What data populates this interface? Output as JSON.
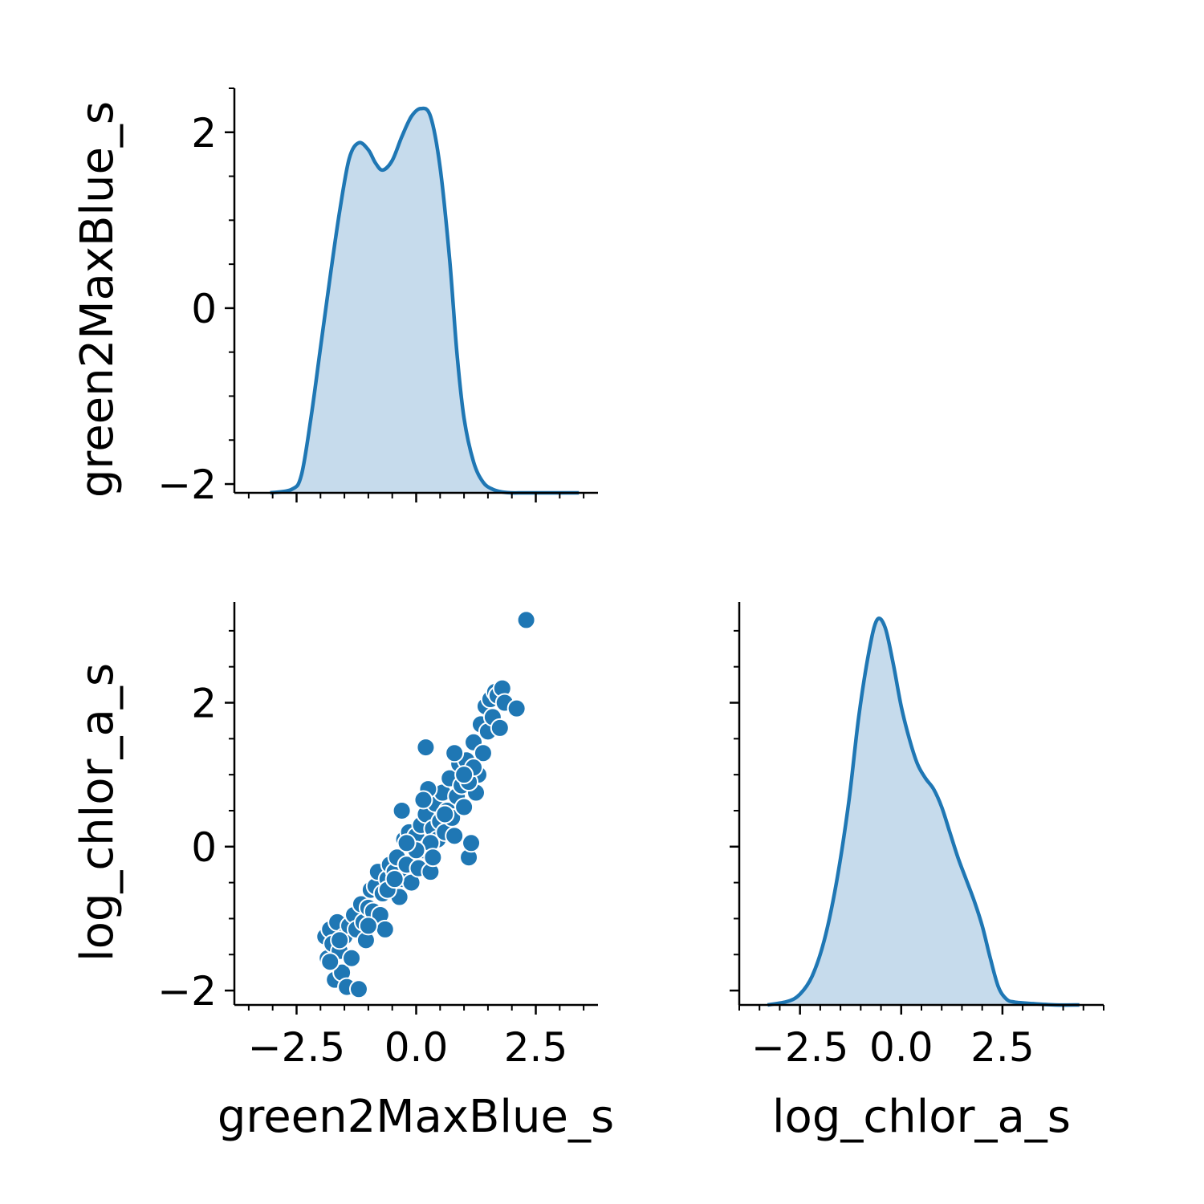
{
  "colors": {
    "series": "#1f77b4",
    "fill": "#c6dbec",
    "axis": "#000000",
    "point_edge": "#ffffff"
  },
  "chart_data": [
    {
      "panel": "diag-green2MaxBlue_s",
      "type": "area",
      "xlabel": "",
      "ylabel": "green2MaxBlue_s",
      "xlim": [
        -3.8,
        3.8
      ],
      "ylim": [
        -2.1,
        2.5
      ],
      "x_ticks": [
        -2.5,
        0.0,
        2.5
      ],
      "y_ticks": [
        {
          "value": -2,
          "label": "−2"
        },
        {
          "value": 0,
          "label": "0"
        },
        {
          "value": 2,
          "label": "2"
        }
      ],
      "x_ticks_labeled": false,
      "grid": false,
      "x": [
        -3.05,
        -2.6,
        -2.4,
        -2.2,
        -2.0,
        -1.8,
        -1.6,
        -1.4,
        -1.2,
        -1.0,
        -0.85,
        -0.7,
        -0.5,
        -0.3,
        -0.1,
        0.1,
        0.3,
        0.5,
        0.7,
        0.85,
        1.0,
        1.2,
        1.4,
        1.6,
        1.8,
        2.0,
        2.2,
        2.4,
        2.6,
        3.0,
        3.4
      ],
      "y": [
        -2.1,
        -2.06,
        -1.9,
        -1.25,
        -0.45,
        0.35,
        1.1,
        1.7,
        1.88,
        1.8,
        1.65,
        1.57,
        1.68,
        1.95,
        2.18,
        2.27,
        2.18,
        1.6,
        0.55,
        -0.5,
        -1.25,
        -1.75,
        -1.98,
        -2.06,
        -2.09,
        -2.1,
        -2.1,
        -2.1,
        -2.1,
        -2.1,
        -2.1
      ]
    },
    {
      "panel": "scatter-green2MaxBlue_s-vs-log_chlor_a_s",
      "type": "scatter",
      "xlabel": "green2MaxBlue_s",
      "ylabel": "log_chlor_a_s",
      "xlim": [
        -3.8,
        3.8
      ],
      "ylim": [
        -2.2,
        3.4
      ],
      "x_ticks": [
        {
          "value": -2.5,
          "label": "−2.5"
        },
        {
          "value": 0,
          "label": "0.0"
        },
        {
          "value": 2.5,
          "label": "2.5"
        }
      ],
      "y_ticks": [
        {
          "value": -2,
          "label": "−2"
        },
        {
          "value": 0,
          "label": "0"
        },
        {
          "value": 2,
          "label": "2"
        }
      ],
      "grid": false,
      "points": [
        [
          -1.9,
          -1.25
        ],
        [
          -1.85,
          -1.55
        ],
        [
          -1.8,
          -1.15
        ],
        [
          -1.75,
          -1.35
        ],
        [
          -1.7,
          -1.85
        ],
        [
          -1.65,
          -1.05
        ],
        [
          -1.6,
          -1.45
        ],
        [
          -1.55,
          -1.75
        ],
        [
          -1.5,
          -1.25
        ],
        [
          -1.45,
          -1.95
        ],
        [
          -1.4,
          -1.1
        ],
        [
          -1.35,
          -1.55
        ],
        [
          -1.3,
          -0.95
        ],
        [
          -1.25,
          -1.15
        ],
        [
          -1.2,
          -1.98
        ],
        [
          -1.15,
          -0.8
        ],
        [
          -1.1,
          -1.05
        ],
        [
          -1.05,
          -1.3
        ],
        [
          -1.0,
          -0.85
        ],
        [
          -0.95,
          -0.6
        ],
        [
          -0.9,
          -0.9
        ],
        [
          -0.85,
          -0.55
        ],
        [
          -0.8,
          -0.35
        ],
        [
          -0.75,
          -0.95
        ],
        [
          -0.7,
          -0.65
        ],
        [
          -0.65,
          -1.15
        ],
        [
          -0.6,
          -0.45
        ],
        [
          -0.55,
          -0.25
        ],
        [
          -0.5,
          -0.6
        ],
        [
          -0.45,
          -0.35
        ],
        [
          -0.4,
          -0.15
        ],
        [
          -0.35,
          -0.7
        ],
        [
          -0.3,
          -0.45
        ],
        [
          -0.25,
          0.1
        ],
        [
          -0.2,
          -0.25
        ],
        [
          -0.15,
          0.2
        ],
        [
          -0.1,
          -0.5
        ],
        [
          -0.05,
          0.0
        ],
        [
          0.0,
          0.15
        ],
        [
          0.05,
          -0.3
        ],
        [
          0.1,
          0.3
        ],
        [
          0.15,
          -0.05
        ],
        [
          0.2,
          0.45
        ],
        [
          0.25,
          0.0
        ],
        [
          0.3,
          -0.35
        ],
        [
          0.35,
          0.25
        ],
        [
          0.4,
          0.6
        ],
        [
          0.45,
          0.1
        ],
        [
          0.5,
          0.35
        ],
        [
          0.55,
          0.75
        ],
        [
          0.6,
          0.2
        ],
        [
          0.65,
          0.5
        ],
        [
          0.7,
          0.95
        ],
        [
          0.75,
          0.4
        ],
        [
          0.8,
          0.15
        ],
        [
          0.85,
          0.7
        ],
        [
          0.9,
          1.15
        ],
        [
          0.95,
          0.85
        ],
        [
          1.0,
          0.55
        ],
        [
          1.05,
          1.2
        ],
        [
          1.1,
          -0.15
        ],
        [
          1.15,
          0.05
        ],
        [
          1.2,
          1.45
        ],
        [
          1.25,
          0.75
        ],
        [
          1.3,
          1.0
        ],
        [
          1.35,
          1.7
        ],
        [
          1.4,
          1.3
        ],
        [
          1.45,
          1.95
        ],
        [
          1.5,
          1.6
        ],
        [
          1.55,
          2.05
        ],
        [
          1.6,
          1.8
        ],
        [
          1.65,
          2.15
        ],
        [
          1.7,
          2.1
        ],
        [
          1.75,
          1.65
        ],
        [
          1.8,
          2.2
        ],
        [
          1.85,
          2.0
        ],
        [
          2.1,
          1.92
        ],
        [
          2.3,
          3.15
        ],
        [
          0.2,
          1.38
        ],
        [
          -0.3,
          0.5
        ],
        [
          -1.8,
          -1.6
        ],
        [
          -1.6,
          -1.3
        ],
        [
          -1.0,
          -1.1
        ],
        [
          -0.6,
          -0.6
        ],
        [
          0.3,
          0.05
        ],
        [
          0.8,
          1.3
        ],
        [
          1.1,
          0.9
        ],
        [
          0.25,
          0.8
        ],
        [
          0.0,
          -0.05
        ],
        [
          -0.2,
          0.05
        ],
        [
          0.6,
          0.45
        ],
        [
          1.2,
          1.1
        ],
        [
          0.35,
          -0.15
        ],
        [
          -0.45,
          -0.45
        ],
        [
          1.0,
          1.0
        ],
        [
          0.15,
          0.65
        ]
      ]
    },
    {
      "panel": "diag-log_chlor_a_s",
      "type": "area",
      "xlabel": "log_chlor_a_s",
      "ylabel": "",
      "xlim": [
        -4.0,
        5.0
      ],
      "ylim": [
        -2.2,
        3.4
      ],
      "x_ticks": [
        {
          "value": -2.5,
          "label": "−2.5"
        },
        {
          "value": 0,
          "label": "0.0"
        },
        {
          "value": 2.5,
          "label": "2.5"
        }
      ],
      "y_ticks_labeled": false,
      "grid": false,
      "x": [
        -3.3,
        -2.8,
        -2.5,
        -2.2,
        -1.9,
        -1.6,
        -1.3,
        -1.05,
        -0.8,
        -0.6,
        -0.4,
        -0.2,
        0.0,
        0.2,
        0.4,
        0.6,
        0.8,
        1.0,
        1.2,
        1.4,
        1.6,
        1.8,
        2.0,
        2.2,
        2.4,
        2.6,
        2.8,
        3.2,
        3.8,
        4.4
      ],
      "y": [
        -2.2,
        -2.15,
        -2.05,
        -1.8,
        -1.3,
        -0.5,
        0.6,
        1.8,
        2.7,
        3.15,
        3.05,
        2.55,
        1.95,
        1.5,
        1.15,
        0.95,
        0.8,
        0.55,
        0.2,
        -0.15,
        -0.45,
        -0.75,
        -1.1,
        -1.55,
        -1.95,
        -2.12,
        -2.16,
        -2.18,
        -2.2,
        -2.2
      ]
    }
  ]
}
